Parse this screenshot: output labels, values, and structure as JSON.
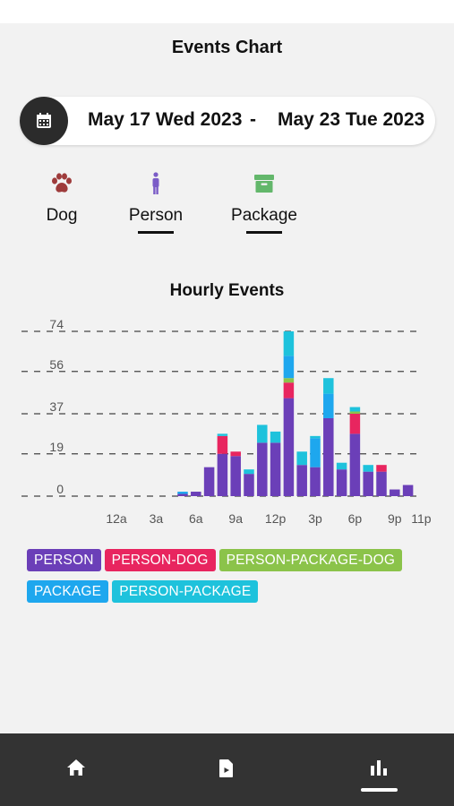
{
  "header": {
    "title": "Events Chart"
  },
  "date_range": {
    "start": "May 17 Wed 2023",
    "separator": "-",
    "end": "May 23 Tue 2023",
    "icon": "calendar-icon"
  },
  "filters": [
    {
      "label": "Dog",
      "icon": "paw-icon",
      "color": "#9e3b3b",
      "selected": false
    },
    {
      "label": "Person",
      "icon": "person-icon",
      "color": "#7b5cc7",
      "selected": true
    },
    {
      "label": "Package",
      "icon": "package-icon",
      "color": "#63b76b",
      "selected": true
    }
  ],
  "chart_data": {
    "type": "bar",
    "stacked": true,
    "title": "Hourly Events",
    "x": [
      0,
      1,
      2,
      3,
      4,
      5,
      6,
      7,
      8,
      9,
      10,
      11,
      12,
      13,
      14,
      15,
      16,
      17,
      18,
      19,
      20,
      21,
      22,
      23
    ],
    "x_tick_labels": [
      {
        "x": 0,
        "label": "12a"
      },
      {
        "x": 3,
        "label": "3a"
      },
      {
        "x": 6,
        "label": "6a"
      },
      {
        "x": 9,
        "label": "9a"
      },
      {
        "x": 12,
        "label": "12p"
      },
      {
        "x": 15,
        "label": "3p"
      },
      {
        "x": 18,
        "label": "6p"
      },
      {
        "x": 21,
        "label": "9p"
      },
      {
        "x": 23,
        "label": "11p"
      }
    ],
    "y_ticks": [
      0,
      19,
      37,
      56,
      74
    ],
    "ylim": [
      0,
      74
    ],
    "grid": true,
    "series": [
      {
        "name": "PERSON",
        "color": "#6b3fb8",
        "values": [
          0,
          0,
          0,
          0,
          0,
          1,
          2,
          13,
          19,
          18,
          10,
          24,
          24,
          44,
          14,
          13,
          35,
          12,
          28,
          11,
          11,
          3,
          5,
          0
        ]
      },
      {
        "name": "PERSON-DOG",
        "color": "#e8255f",
        "values": [
          0,
          0,
          0,
          0,
          0,
          0,
          0,
          0,
          8,
          2,
          0,
          0,
          0,
          7,
          0,
          0,
          0,
          0,
          9,
          0,
          3,
          0,
          0,
          0
        ]
      },
      {
        "name": "PERSON-PACKAGE-DOG",
        "color": "#8bc34a",
        "values": [
          0,
          0,
          0,
          0,
          0,
          0,
          0,
          0,
          0,
          0,
          0,
          0,
          0,
          2,
          0,
          0,
          0,
          0,
          1,
          0,
          0,
          0,
          0,
          0
        ]
      },
      {
        "name": "PACKAGE",
        "color": "#1ea7ee",
        "values": [
          0,
          0,
          0,
          0,
          0,
          1,
          0,
          0,
          0,
          0,
          0,
          0,
          0,
          10,
          0,
          13,
          11,
          0,
          0,
          0,
          0,
          0,
          0,
          0
        ]
      },
      {
        "name": "PERSON-PACKAGE",
        "color": "#1ec2dc",
        "values": [
          0,
          0,
          0,
          0,
          0,
          0,
          0,
          0,
          1,
          0,
          2,
          8,
          5,
          11,
          6,
          1,
          7,
          3,
          2,
          3,
          0,
          0,
          0,
          0
        ]
      }
    ],
    "legend_position": "bottom"
  },
  "bottom_nav": [
    {
      "icon": "home-icon",
      "active": false
    },
    {
      "icon": "recordings-icon",
      "active": false
    },
    {
      "icon": "bar-chart-icon",
      "active": true
    }
  ]
}
